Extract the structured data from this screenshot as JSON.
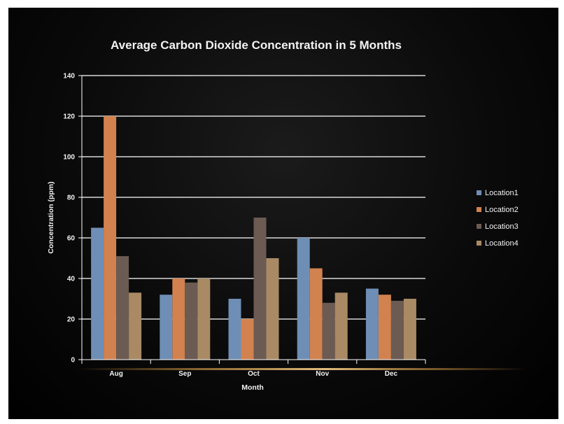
{
  "chart_data": {
    "type": "bar",
    "title": "Average Carbon Dioxide Concentration in 5 Months",
    "xlabel": "Month",
    "ylabel": "Concentration (ppm)",
    "categories": [
      "Aug",
      "Sep",
      "Oct",
      "Nov",
      "Dec"
    ],
    "ylim": [
      0,
      140
    ],
    "yticks": [
      0,
      20,
      40,
      60,
      80,
      100,
      120,
      140
    ],
    "grid": true,
    "legend_position": "right",
    "series": [
      {
        "name": "Location1",
        "color": "#6e8eb5",
        "values": [
          65,
          32,
          30,
          60,
          35
        ]
      },
      {
        "name": "Location2",
        "color": "#d1824f",
        "values": [
          120,
          40,
          20,
          45,
          32
        ]
      },
      {
        "name": "Location3",
        "color": "#6b5b52",
        "values": [
          51,
          38,
          70,
          28,
          29
        ]
      },
      {
        "name": "Location4",
        "color": "#a98a64",
        "values": [
          33,
          40,
          50,
          33,
          30
        ]
      }
    ]
  },
  "colors": {
    "background": "#000000",
    "text": "#f2f2f2",
    "gridline": "#ffffff",
    "accent_glow": "#e8a64a"
  }
}
